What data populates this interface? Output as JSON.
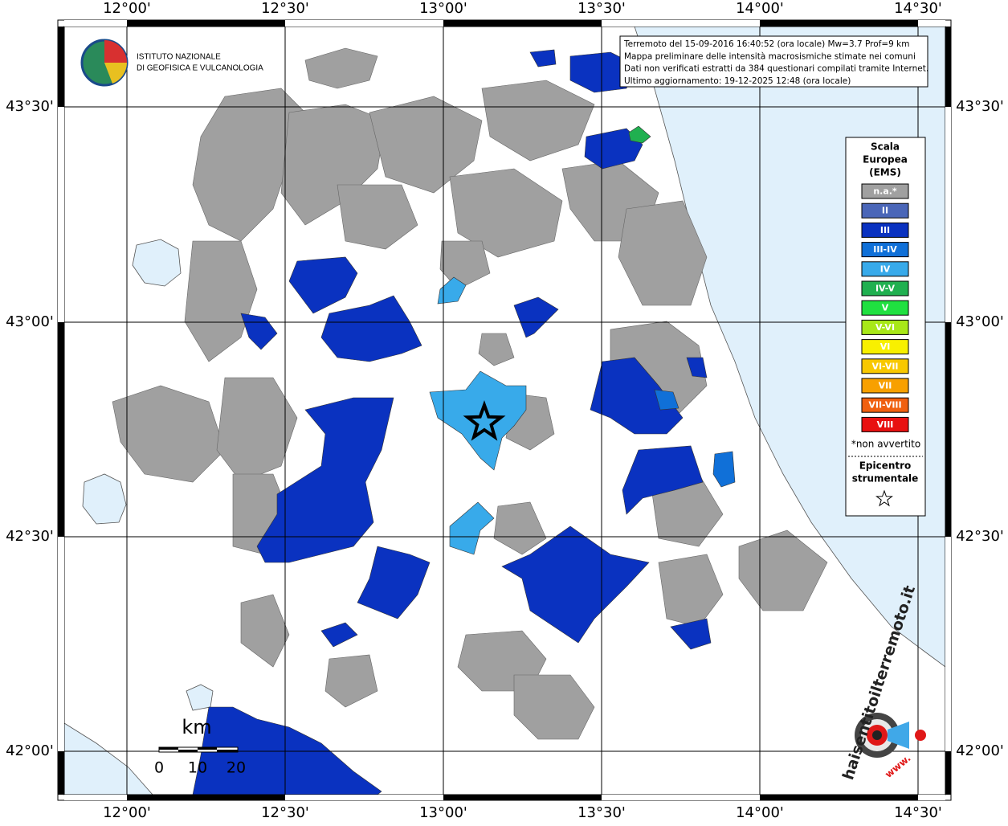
{
  "map": {
    "longitude_labels": [
      "12°00'",
      "12°30'",
      "13°00'",
      "13°30'",
      "14°00'",
      "14°30'"
    ],
    "latitude_labels": [
      "43°30'",
      "43°00'",
      "42°30'",
      "42°00'"
    ],
    "institute": [
      "ISTITUTO NAZIONALE",
      "DI GEOFISICA E VULCANOLOGIA"
    ],
    "info": [
      "Terremoto del 15-09-2016 16:40:52 (ora locale) Mw=3.7 Prof=9 km",
      "Mappa preliminare delle intensità macrosismiche stimate nei comuni",
      "Dati non verificati estratti da 384 questionari compilati tramite Internet.",
      "Ultimo aggiornamento: 19-12-2025 12:48 (ora locale)"
    ],
    "legend": {
      "title": [
        "Scala",
        "Europea",
        "(EMS)"
      ],
      "items": [
        {
          "label": "n.a.*",
          "color": "#a0a0a0"
        },
        {
          "label": "II",
          "color": "#4a66b8"
        },
        {
          "label": "III",
          "color": "#0a32c0"
        },
        {
          "label": "III-IV",
          "color": "#1070d8"
        },
        {
          "label": "IV",
          "color": "#38aaea"
        },
        {
          "label": "IV-V",
          "color": "#20b050"
        },
        {
          "label": "V",
          "color": "#20e040"
        },
        {
          "label": "V-VI",
          "color": "#a8e818"
        },
        {
          "label": "VI",
          "color": "#f8f000"
        },
        {
          "label": "VI-VII",
          "color": "#f8c800"
        },
        {
          "label": "VII",
          "color": "#f8a000"
        },
        {
          "label": "VII-VIII",
          "color": "#f06010"
        },
        {
          "label": "VIII",
          "color": "#e81010"
        }
      ],
      "note": "*non avvertito",
      "epicenter": [
        "Epicentro",
        "strumentale"
      ]
    },
    "scale": {
      "unit": "km",
      "labels": [
        "0",
        "10",
        "20"
      ]
    },
    "site_logo": {
      "text": "haisentitoilterremoto.it",
      "www": "www."
    }
  }
}
